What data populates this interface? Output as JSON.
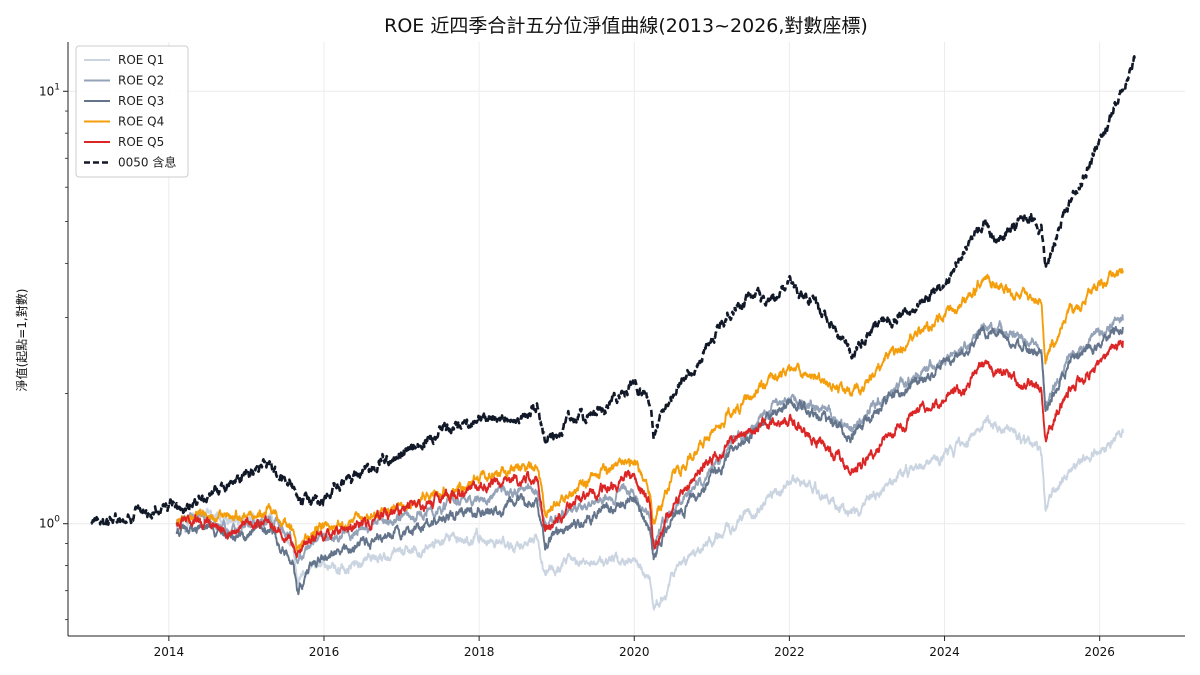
{
  "chart_data": {
    "type": "line",
    "title": "ROE 近四季合計五分位淨值曲線(2013~2026,對數座標)",
    "xlabel": "",
    "ylabel": "淨值(起點=1,對數)",
    "y_scale": "log",
    "xlim": [
      2012.7,
      2027.1
    ],
    "ylim": [
      0.55,
      13.0
    ],
    "x_ticks": [
      2014,
      2016,
      2018,
      2020,
      2022,
      2024,
      2026
    ],
    "x_tick_labels": [
      "2014",
      "2016",
      "2018",
      "2020",
      "2022",
      "2024",
      "2026"
    ],
    "y_ticks": [
      1,
      10
    ],
    "y_tick_labels": [
      {
        "base": "10",
        "exp": "0"
      },
      {
        "base": "10",
        "exp": "1"
      }
    ],
    "grid": true,
    "legend_position": "top-left",
    "series": [
      {
        "name": "ROE Q1",
        "color": "#cbd5e1",
        "dash": false,
        "points": [
          [
            2014.1,
            1.0
          ],
          [
            2014.4,
            1.06
          ],
          [
            2014.8,
            1.0
          ],
          [
            2015.3,
            1.02
          ],
          [
            2015.6,
            0.88
          ],
          [
            2015.65,
            0.72
          ],
          [
            2015.9,
            0.82
          ],
          [
            2016.2,
            0.78
          ],
          [
            2016.6,
            0.84
          ],
          [
            2017.0,
            0.85
          ],
          [
            2017.5,
            0.9
          ],
          [
            2018.0,
            0.93
          ],
          [
            2018.5,
            0.88
          ],
          [
            2018.75,
            0.92
          ],
          [
            2018.85,
            0.76
          ],
          [
            2019.1,
            0.8
          ],
          [
            2019.5,
            0.82
          ],
          [
            2019.9,
            0.82
          ],
          [
            2020.0,
            0.81
          ],
          [
            2020.2,
            0.72
          ],
          [
            2020.25,
            0.62
          ],
          [
            2020.5,
            0.76
          ],
          [
            2020.9,
            0.9
          ],
          [
            2021.3,
            1.0
          ],
          [
            2021.7,
            1.12
          ],
          [
            2022.0,
            1.26
          ],
          [
            2022.3,
            1.2
          ],
          [
            2022.6,
            1.12
          ],
          [
            2022.8,
            1.05
          ],
          [
            2023.2,
            1.22
          ],
          [
            2023.6,
            1.35
          ],
          [
            2024.0,
            1.45
          ],
          [
            2024.3,
            1.55
          ],
          [
            2024.5,
            1.74
          ],
          [
            2024.9,
            1.6
          ],
          [
            2025.25,
            1.48
          ],
          [
            2025.3,
            1.08
          ],
          [
            2025.6,
            1.33
          ],
          [
            2025.9,
            1.45
          ],
          [
            2026.3,
            1.62
          ]
        ]
      },
      {
        "name": "ROE Q2",
        "color": "#94a3b8",
        "dash": false,
        "points": [
          [
            2014.1,
            1.0
          ],
          [
            2014.4,
            1.04
          ],
          [
            2014.8,
            0.98
          ],
          [
            2015.3,
            1.02
          ],
          [
            2015.6,
            0.9
          ],
          [
            2015.65,
            0.82
          ],
          [
            2015.9,
            0.92
          ],
          [
            2016.3,
            0.95
          ],
          [
            2016.8,
            1.02
          ],
          [
            2017.3,
            1.07
          ],
          [
            2017.8,
            1.13
          ],
          [
            2018.3,
            1.18
          ],
          [
            2018.75,
            1.2
          ],
          [
            2018.85,
            0.98
          ],
          [
            2019.2,
            1.08
          ],
          [
            2019.6,
            1.15
          ],
          [
            2020.0,
            1.2
          ],
          [
            2020.2,
            1.05
          ],
          [
            2020.25,
            0.88
          ],
          [
            2020.5,
            1.08
          ],
          [
            2020.9,
            1.28
          ],
          [
            2021.3,
            1.55
          ],
          [
            2021.7,
            1.8
          ],
          [
            2022.0,
            1.95
          ],
          [
            2022.3,
            1.85
          ],
          [
            2022.6,
            1.75
          ],
          [
            2022.8,
            1.68
          ],
          [
            2023.2,
            1.95
          ],
          [
            2023.6,
            2.2
          ],
          [
            2024.0,
            2.4
          ],
          [
            2024.3,
            2.6
          ],
          [
            2024.5,
            2.92
          ],
          [
            2024.9,
            2.7
          ],
          [
            2025.25,
            2.55
          ],
          [
            2025.3,
            1.88
          ],
          [
            2025.6,
            2.45
          ],
          [
            2025.9,
            2.65
          ],
          [
            2026.3,
            2.95
          ]
        ]
      },
      {
        "name": "ROE Q3",
        "color": "#64748b",
        "dash": false,
        "points": [
          [
            2014.1,
            0.95
          ],
          [
            2014.4,
            0.99
          ],
          [
            2014.8,
            0.92
          ],
          [
            2015.3,
            0.96
          ],
          [
            2015.6,
            0.82
          ],
          [
            2015.65,
            0.7
          ],
          [
            2015.9,
            0.82
          ],
          [
            2016.3,
            0.86
          ],
          [
            2016.8,
            0.93
          ],
          [
            2017.3,
            0.99
          ],
          [
            2017.8,
            1.05
          ],
          [
            2018.3,
            1.1
          ],
          [
            2018.75,
            1.12
          ],
          [
            2018.85,
            0.9
          ],
          [
            2019.2,
            1.0
          ],
          [
            2019.6,
            1.08
          ],
          [
            2020.0,
            1.14
          ],
          [
            2020.2,
            1.0
          ],
          [
            2020.25,
            0.84
          ],
          [
            2020.5,
            1.02
          ],
          [
            2020.9,
            1.22
          ],
          [
            2021.3,
            1.5
          ],
          [
            2021.7,
            1.75
          ],
          [
            2022.0,
            1.9
          ],
          [
            2022.3,
            1.8
          ],
          [
            2022.6,
            1.7
          ],
          [
            2022.8,
            1.6
          ],
          [
            2023.2,
            1.9
          ],
          [
            2023.6,
            2.15
          ],
          [
            2024.0,
            2.35
          ],
          [
            2024.3,
            2.55
          ],
          [
            2024.5,
            2.85
          ],
          [
            2024.9,
            2.6
          ],
          [
            2025.25,
            2.45
          ],
          [
            2025.3,
            1.8
          ],
          [
            2025.6,
            2.38
          ],
          [
            2025.9,
            2.55
          ],
          [
            2026.3,
            2.85
          ]
        ]
      },
      {
        "name": "ROE Q4",
        "color": "#f59e0b",
        "dash": false,
        "points": [
          [
            2014.1,
            1.0
          ],
          [
            2014.4,
            1.07
          ],
          [
            2014.8,
            1.02
          ],
          [
            2015.3,
            1.08
          ],
          [
            2015.6,
            0.96
          ],
          [
            2015.65,
            0.86
          ],
          [
            2015.9,
            0.97
          ],
          [
            2016.3,
            1.0
          ],
          [
            2016.8,
            1.08
          ],
          [
            2017.3,
            1.15
          ],
          [
            2017.8,
            1.23
          ],
          [
            2018.3,
            1.3
          ],
          [
            2018.75,
            1.35
          ],
          [
            2018.85,
            1.06
          ],
          [
            2019.2,
            1.2
          ],
          [
            2019.6,
            1.3
          ],
          [
            2020.0,
            1.38
          ],
          [
            2020.2,
            1.2
          ],
          [
            2020.25,
            1.0
          ],
          [
            2020.5,
            1.28
          ],
          [
            2020.9,
            1.55
          ],
          [
            2021.3,
            1.85
          ],
          [
            2021.7,
            2.1
          ],
          [
            2022.0,
            2.28
          ],
          [
            2022.3,
            2.18
          ],
          [
            2022.6,
            2.05
          ],
          [
            2022.8,
            1.95
          ],
          [
            2023.2,
            2.35
          ],
          [
            2023.6,
            2.75
          ],
          [
            2024.0,
            3.0
          ],
          [
            2024.3,
            3.3
          ],
          [
            2024.5,
            3.65
          ],
          [
            2024.9,
            3.45
          ],
          [
            2025.25,
            3.25
          ],
          [
            2025.3,
            2.42
          ],
          [
            2025.6,
            3.1
          ],
          [
            2025.9,
            3.4
          ],
          [
            2026.3,
            3.85
          ]
        ]
      },
      {
        "name": "ROE Q5",
        "color": "#dc2626",
        "dash": false,
        "points": [
          [
            2014.1,
            1.0
          ],
          [
            2014.4,
            1.02
          ],
          [
            2014.8,
            0.97
          ],
          [
            2015.3,
            1.03
          ],
          [
            2015.6,
            0.92
          ],
          [
            2015.65,
            0.82
          ],
          [
            2015.9,
            0.93
          ],
          [
            2016.3,
            0.97
          ],
          [
            2016.8,
            1.05
          ],
          [
            2017.3,
            1.12
          ],
          [
            2017.8,
            1.18
          ],
          [
            2018.3,
            1.25
          ],
          [
            2018.75,
            1.28
          ],
          [
            2018.85,
            0.97
          ],
          [
            2019.2,
            1.1
          ],
          [
            2019.6,
            1.2
          ],
          [
            2020.0,
            1.27
          ],
          [
            2020.2,
            1.1
          ],
          [
            2020.25,
            0.88
          ],
          [
            2020.5,
            1.1
          ],
          [
            2020.9,
            1.35
          ],
          [
            2021.3,
            1.55
          ],
          [
            2021.7,
            1.75
          ],
          [
            2022.0,
            1.72
          ],
          [
            2022.3,
            1.6
          ],
          [
            2022.6,
            1.45
          ],
          [
            2022.8,
            1.3
          ],
          [
            2023.2,
            1.55
          ],
          [
            2023.6,
            1.8
          ],
          [
            2024.0,
            1.95
          ],
          [
            2024.3,
            2.1
          ],
          [
            2024.5,
            2.3
          ],
          [
            2024.9,
            2.15
          ],
          [
            2025.25,
            2.05
          ],
          [
            2025.3,
            1.58
          ],
          [
            2025.6,
            2.05
          ],
          [
            2025.9,
            2.25
          ],
          [
            2026.3,
            2.65
          ]
        ]
      },
      {
        "name": "0050 含息",
        "color": "#111827",
        "dash": true,
        "points": [
          [
            2013.0,
            1.0
          ],
          [
            2013.4,
            1.02
          ],
          [
            2013.8,
            1.07
          ],
          [
            2014.2,
            1.1
          ],
          [
            2014.6,
            1.18
          ],
          [
            2015.0,
            1.3
          ],
          [
            2015.3,
            1.38
          ],
          [
            2015.6,
            1.22
          ],
          [
            2015.7,
            1.12
          ],
          [
            2016.0,
            1.15
          ],
          [
            2016.4,
            1.3
          ],
          [
            2016.8,
            1.4
          ],
          [
            2017.2,
            1.5
          ],
          [
            2017.6,
            1.65
          ],
          [
            2018.0,
            1.72
          ],
          [
            2018.4,
            1.75
          ],
          [
            2018.75,
            1.85
          ],
          [
            2018.85,
            1.55
          ],
          [
            2019.2,
            1.72
          ],
          [
            2019.6,
            1.85
          ],
          [
            2020.0,
            2.1
          ],
          [
            2020.2,
            1.9
          ],
          [
            2020.25,
            1.6
          ],
          [
            2020.5,
            2.0
          ],
          [
            2020.9,
            2.5
          ],
          [
            2021.2,
            3.0
          ],
          [
            2021.5,
            3.3
          ],
          [
            2021.8,
            3.25
          ],
          [
            2022.0,
            3.6
          ],
          [
            2022.3,
            3.25
          ],
          [
            2022.6,
            2.8
          ],
          [
            2022.8,
            2.45
          ],
          [
            2023.2,
            2.95
          ],
          [
            2023.6,
            3.1
          ],
          [
            2024.0,
            3.6
          ],
          [
            2024.3,
            4.4
          ],
          [
            2024.5,
            5.0
          ],
          [
            2024.7,
            4.6
          ],
          [
            2025.0,
            5.1
          ],
          [
            2025.25,
            4.8
          ],
          [
            2025.3,
            3.9
          ],
          [
            2025.6,
            5.5
          ],
          [
            2025.9,
            7.0
          ],
          [
            2026.2,
            9.2
          ],
          [
            2026.45,
            11.8
          ]
        ]
      }
    ]
  }
}
